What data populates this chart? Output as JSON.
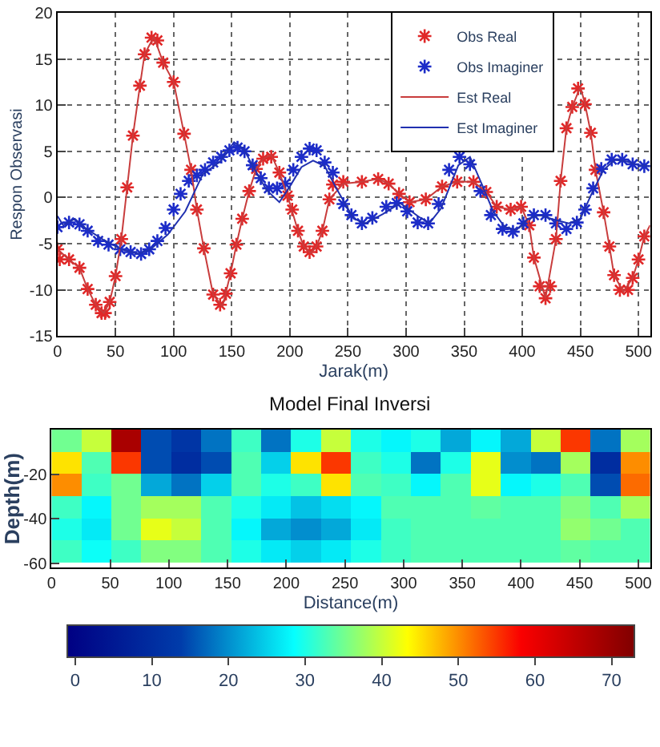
{
  "chart_data": [
    {
      "type": "line",
      "xlabel": "Jarak(m)",
      "ylabel": "Respon Observasi",
      "xlim": [
        0,
        510
      ],
      "ylim": [
        -15,
        20
      ],
      "xticks": [
        0,
        50,
        100,
        150,
        200,
        250,
        300,
        350,
        400,
        450,
        500
      ],
      "yticks": [
        -15,
        -10,
        -5,
        0,
        5,
        10,
        15,
        20
      ],
      "grid": true,
      "legend": "top right",
      "series": [
        {
          "name": "Obs Real",
          "type": "scatter",
          "marker": "cross",
          "color": "#e02828",
          "x": [
            0,
            2,
            10,
            19,
            26,
            33,
            38,
            41,
            45,
            50,
            55,
            60,
            65,
            71,
            75,
            81,
            86,
            91,
            100,
            109,
            115,
            120,
            126,
            134,
            140,
            145,
            149,
            154,
            159,
            165,
            171,
            177,
            184,
            191,
            198,
            202,
            207,
            212,
            217,
            223,
            228,
            234,
            237,
            246,
            262,
            276,
            285,
            294,
            303,
            317,
            331,
            344,
            358,
            369,
            378,
            390,
            399,
            406,
            410,
            415,
            420,
            424,
            429,
            433,
            438,
            443,
            448,
            454,
            459,
            463,
            470,
            475,
            479,
            484,
            491,
            495,
            500,
            505
          ],
          "values": [
            -5.6,
            -6.7,
            -6.7,
            -7.6,
            -9.9,
            -11.6,
            -12.5,
            -12.5,
            -11.3,
            -8.5,
            -4.5,
            1.1,
            6.7,
            12.1,
            15.5,
            17.3,
            17.0,
            14.6,
            12.5,
            6.9,
            3.0,
            -1.3,
            -5.5,
            -10.5,
            -11.6,
            -10.4,
            -8.2,
            -5.1,
            -2.3,
            0.7,
            3.1,
            4.2,
            4.4,
            2.7,
            0.2,
            -1.3,
            -3.6,
            -5.3,
            -5.9,
            -5.3,
            -3.6,
            -0.2,
            1.4,
            1.7,
            1.7,
            2.0,
            1.5,
            0.4,
            -0.5,
            -0.2,
            1.2,
            1.7,
            1.7,
            0.6,
            -1.0,
            -1.3,
            -1.0,
            -3.0,
            -6.5,
            -9.6,
            -10.9,
            -9.6,
            -4.5,
            1.8,
            7.5,
            9.8,
            11.8,
            10.1,
            7.0,
            3.0,
            -1.6,
            -5.3,
            -8.4,
            -10.0,
            -10.0,
            -8.7,
            -6.7,
            -4.2
          ]
        },
        {
          "name": "Obs Imaginer",
          "type": "scatter",
          "marker": "cross",
          "color": "#1c2cc8",
          "x": [
            0,
            10,
            19,
            26,
            35,
            44,
            54,
            63,
            72,
            79,
            86,
            93,
            100,
            106,
            113,
            120,
            127,
            134,
            141,
            148,
            155,
            161,
            168,
            175,
            182,
            189,
            196,
            203,
            210,
            217,
            223,
            230,
            237,
            246,
            253,
            262,
            271,
            283,
            292,
            301,
            310,
            319,
            328,
            337,
            346,
            355,
            364,
            373,
            383,
            392,
            401,
            410,
            420,
            429,
            438,
            447,
            454,
            461,
            468,
            477,
            486,
            495,
            505
          ],
          "values": [
            -3.2,
            -2.7,
            -2.9,
            -3.6,
            -4.7,
            -5.1,
            -5.6,
            -5.9,
            -6.1,
            -5.6,
            -4.7,
            -3.3,
            -1.3,
            0.4,
            1.8,
            2.4,
            3.0,
            3.8,
            4.4,
            5.1,
            5.4,
            5.0,
            3.5,
            2.1,
            1.0,
            1.0,
            1.5,
            3.0,
            4.4,
            5.3,
            5.1,
            3.8,
            2.7,
            -0.7,
            -1.9,
            -2.8,
            -2.2,
            -1.0,
            -0.6,
            -1.5,
            -2.7,
            -2.8,
            -0.7,
            3.0,
            4.4,
            3.6,
            0.7,
            -1.9,
            -3.4,
            -3.7,
            -2.8,
            -1.9,
            -1.9,
            -2.8,
            -3.4,
            -2.7,
            -1.3,
            1.0,
            3.1,
            4.1,
            4.1,
            3.6,
            3.4
          ]
        },
        {
          "name": "Est Real",
          "type": "line",
          "color": "#c83c3c",
          "x": [
            0,
            10,
            19,
            26,
            33,
            40,
            45,
            50,
            55,
            60,
            65,
            71,
            75,
            83,
            91,
            100,
            109,
            115,
            120,
            126,
            134,
            142,
            149,
            154,
            159,
            165,
            171,
            177,
            184,
            191,
            198,
            207,
            212,
            218,
            223,
            228,
            234,
            246,
            262,
            276,
            285,
            294,
            303,
            317,
            331,
            344,
            358,
            369,
            378,
            390,
            399,
            406,
            410,
            420,
            429,
            433,
            438,
            443,
            450,
            454,
            459,
            463,
            470,
            475,
            479,
            487,
            495,
            500,
            505,
            510
          ],
          "values": [
            -5.6,
            -6.7,
            -7.6,
            -9.9,
            -11.6,
            -12.5,
            -11.3,
            -8.5,
            -4.5,
            1.1,
            6.7,
            12.1,
            15.5,
            17.4,
            14.6,
            12.5,
            6.9,
            3.0,
            -1.3,
            -5.5,
            -10.5,
            -11.8,
            -8.2,
            -5.1,
            -2.3,
            0.7,
            3.1,
            4.2,
            4.6,
            2.7,
            0.2,
            -3.6,
            -5.3,
            -6.0,
            -5.3,
            -3.6,
            -0.2,
            1.5,
            1.7,
            2.0,
            1.5,
            0.4,
            -0.5,
            -0.2,
            1.2,
            1.7,
            1.7,
            0.6,
            -1.0,
            -1.3,
            -1.0,
            -3.0,
            -6.5,
            -10.9,
            -4.5,
            1.8,
            7.5,
            9.8,
            12.0,
            10.1,
            7.0,
            3.0,
            -1.6,
            -5.3,
            -8.4,
            -10.2,
            -8.7,
            -6.7,
            -4.2,
            -3.0
          ]
        },
        {
          "name": "Est Imaginer",
          "type": "line",
          "color": "#2030b0",
          "x": [
            0,
            5,
            15,
            25,
            40,
            55,
            70,
            80,
            95,
            110,
            125,
            140,
            152,
            160,
            170,
            180,
            191,
            200,
            210,
            220,
            230,
            240,
            255,
            265,
            280,
            295,
            310,
            320,
            330,
            345,
            355,
            365,
            375,
            385,
            395,
            405,
            415,
            425,
            440,
            450,
            460,
            470,
            480,
            490,
            500,
            510
          ],
          "values": [
            -2,
            -3,
            -2.3,
            -3.4,
            -4.6,
            -5.6,
            -6.1,
            -5.6,
            -4.0,
            -1.5,
            2.5,
            3.9,
            6.0,
            5.3,
            3.0,
            0.8,
            -0.5,
            1.2,
            3.3,
            4.0,
            3.4,
            1.0,
            -2.3,
            -2.8,
            -1.8,
            -0.6,
            -2.0,
            -2.8,
            -1.2,
            3.5,
            4.4,
            1.5,
            -1.5,
            -3.2,
            -3.5,
            -2.3,
            -1.9,
            -2.3,
            -2.8,
            -2.3,
            0.5,
            3.0,
            4.1,
            3.9,
            3.5,
            3.4
          ]
        }
      ]
    },
    {
      "type": "heatmap",
      "title": "Model Final Inversi",
      "xlabel": "Distance(m)",
      "ylabel": "Depth(m)",
      "xlim": [
        0,
        510
      ],
      "ylim": [
        -62,
        0
      ],
      "xticks": [
        0,
        50,
        100,
        150,
        200,
        250,
        300,
        350,
        400,
        450,
        500
      ],
      "yticks": [
        -20,
        -40,
        -60
      ],
      "clim": [
        -1,
        73
      ],
      "cticks": [
        0,
        10,
        20,
        30,
        40,
        50,
        60,
        70
      ],
      "x": [
        12.75,
        38.25,
        63.75,
        89.25,
        114.75,
        140.25,
        165.75,
        191.25,
        216.75,
        242.25,
        267.75,
        293.25,
        318.75,
        344.25,
        369.75,
        395.25,
        420.75,
        446.25,
        471.75,
        497.25
      ],
      "y": [
        -5,
        -15,
        -25,
        -35,
        -45,
        -55
      ],
      "cells": [
        [
          35,
          40,
          68,
          15,
          12,
          18,
          32,
          18,
          30,
          40,
          30,
          28,
          30,
          22,
          28,
          22,
          40,
          55,
          18,
          38
        ],
        [
          45,
          33,
          55,
          15,
          10,
          15,
          33,
          25,
          45,
          55,
          32,
          30,
          18,
          30,
          42,
          20,
          18,
          38,
          10,
          50
        ],
        [
          50,
          32,
          35,
          22,
          18,
          25,
          33,
          30,
          32,
          45,
          33,
          32,
          28,
          33,
          42,
          28,
          30,
          33,
          15,
          52
        ],
        [
          32,
          28,
          35,
          38,
          38,
          33,
          30,
          27,
          24,
          26,
          28,
          33,
          33,
          33,
          34,
          33,
          33,
          36,
          33,
          38
        ],
        [
          30,
          27,
          35,
          42,
          40,
          33,
          28,
          22,
          20,
          22,
          27,
          32,
          33,
          33,
          33,
          33,
          33,
          37,
          35,
          33
        ],
        [
          32,
          29,
          32,
          36,
          36,
          33,
          30,
          27,
          25,
          27,
          30,
          32,
          33,
          33,
          33,
          33,
          33,
          34,
          33,
          33
        ]
      ]
    }
  ]
}
